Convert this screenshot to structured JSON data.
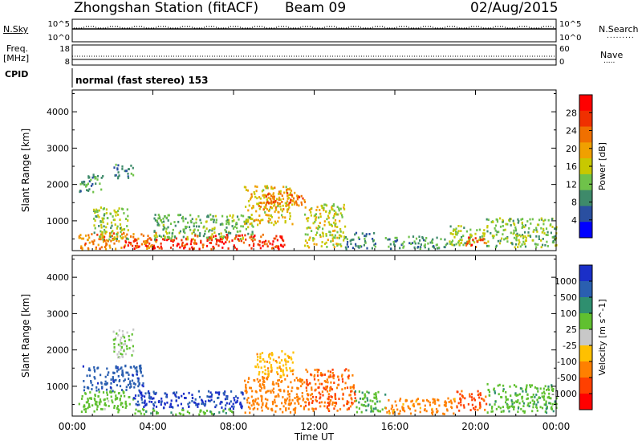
{
  "header": {
    "title": "Zhongshan Station (fitACF)",
    "beam": "Beam 09",
    "date": "02/Aug/2015"
  },
  "status_panels": {
    "nsky_label": "N.Sky",
    "nsearch_label": "N.Search",
    "noise_ticks_left": [
      "10^5",
      "10^0"
    ],
    "noise_ticks_right": [
      "10^5",
      "10^0"
    ],
    "freq_label_1": "Freq.",
    "freq_label_2": "[MHz]",
    "freq_ticks": [
      "18",
      "8"
    ],
    "nave_label": "Nave",
    "nave_ticks": [
      "60",
      "0"
    ],
    "cpid_label": "CPID",
    "cpid_text": "normal (fast stereo) 153"
  },
  "colors": {
    "power": [
      "#0000ff",
      "#2a4fa0",
      "#3e8a6a",
      "#6fc24a",
      "#c8c800",
      "#f0a000",
      "#f07000",
      "#f03000",
      "#ff0000"
    ],
    "velocity": [
      "#ff0000",
      "#ff4000",
      "#ff8000",
      "#ffc000",
      "#c8c8c8",
      "#60c030",
      "#2f8f6f",
      "#2a5fb0",
      "#1a2fc8"
    ]
  },
  "chart_data": [
    {
      "type": "heatmap",
      "title": "",
      "xlabel": "",
      "ylabel": "Slant Range [km]",
      "x_ticks": [
        "00:00",
        "04:00",
        "08:00",
        "12:00",
        "16:00",
        "20:00",
        "00:00"
      ],
      "x_range_hours": [
        0,
        24
      ],
      "y_ticks": [
        "1000",
        "2000",
        "3000",
        "4000"
      ],
      "ylim": [
        180,
        4600
      ],
      "colorbar": {
        "label": "Power [dB]",
        "ticks": [
          "4",
          "8",
          "12",
          "16",
          "20",
          "24",
          "28"
        ],
        "range": [
          0,
          32
        ]
      },
      "patches": [
        {
          "t": [
            0.3,
            4.2
          ],
          "r": [
            250,
            700
          ],
          "value": 22
        },
        {
          "t": [
            1.0,
            2.8
          ],
          "r": [
            500,
            1400
          ],
          "value": 14
        },
        {
          "t": [
            2.0,
            3.0
          ],
          "r": [
            2200,
            2600
          ],
          "value": 8
        },
        {
          "t": [
            2.5,
            6.0
          ],
          "r": [
            250,
            550
          ],
          "value": 28
        },
        {
          "t": [
            4.0,
            9.0
          ],
          "r": [
            500,
            1200
          ],
          "value": 12
        },
        {
          "t": [
            6.0,
            10.5
          ],
          "r": [
            250,
            650
          ],
          "value": 27
        },
        {
          "t": [
            8.5,
            11.0
          ],
          "r": [
            900,
            2000
          ],
          "value": 18
        },
        {
          "t": [
            9.5,
            11.5
          ],
          "r": [
            1400,
            1800
          ],
          "value": 24
        },
        {
          "t": [
            11.5,
            13.5
          ],
          "r": [
            300,
            1500
          ],
          "value": 16
        },
        {
          "t": [
            13.5,
            15.0
          ],
          "r": [
            250,
            700
          ],
          "value": 8
        },
        {
          "t": [
            15.5,
            18.5
          ],
          "r": [
            250,
            600
          ],
          "value": 10
        },
        {
          "t": [
            18.5,
            20.5
          ],
          "r": [
            350,
            900
          ],
          "value": 14
        },
        {
          "t": [
            19.5,
            20.5
          ],
          "r": [
            300,
            600
          ],
          "value": 26
        },
        {
          "t": [
            20.5,
            24.0
          ],
          "r": [
            300,
            1100
          ],
          "value": 13
        },
        {
          "t": [
            0.3,
            1.5
          ],
          "r": [
            1800,
            2300
          ],
          "value": 10
        }
      ]
    },
    {
      "type": "heatmap",
      "title": "",
      "xlabel": "Time UT",
      "ylabel": "Slant Range [km]",
      "x_ticks": [
        "00:00",
        "04:00",
        "08:00",
        "12:00",
        "16:00",
        "20:00",
        "00:00"
      ],
      "x_range_hours": [
        0,
        24
      ],
      "y_ticks": [
        "1000",
        "2000",
        "3000",
        "4000"
      ],
      "ylim": [
        180,
        4600
      ],
      "colorbar": {
        "label": "Velocity [m s^-1]",
        "ticks": [
          "1000",
          "500",
          "100",
          "25",
          "-25",
          "-100",
          "-500",
          "-1000"
        ],
        "range": [
          -1200,
          1200
        ]
      },
      "patches": [
        {
          "t": [
            0.3,
            3.0
          ],
          "r": [
            300,
            900
          ],
          "value": 60
        },
        {
          "t": [
            0.5,
            3.5
          ],
          "r": [
            900,
            1600
          ],
          "value": 800
        },
        {
          "t": [
            2.0,
            3.0
          ],
          "r": [
            1800,
            2600
          ],
          "value": 20
        },
        {
          "t": [
            3.0,
            8.5
          ],
          "r": [
            400,
            900
          ],
          "value": 1100
        },
        {
          "t": [
            3.0,
            8.0
          ],
          "r": [
            250,
            400
          ],
          "value": 90
        },
        {
          "t": [
            8.5,
            11.5
          ],
          "r": [
            300,
            1300
          ],
          "value": -300
        },
        {
          "t": [
            9.0,
            11.0
          ],
          "r": [
            1300,
            2000
          ],
          "value": -80
        },
        {
          "t": [
            11.5,
            14.0
          ],
          "r": [
            300,
            1500
          ],
          "value": -500
        },
        {
          "t": [
            14.0,
            15.5
          ],
          "r": [
            300,
            900
          ],
          "value": 90
        },
        {
          "t": [
            15.5,
            19.0
          ],
          "r": [
            250,
            700
          ],
          "value": -150
        },
        {
          "t": [
            19.0,
            20.5
          ],
          "r": [
            350,
            900
          ],
          "value": -600
        },
        {
          "t": [
            20.5,
            24.0
          ],
          "r": [
            300,
            1100
          ],
          "value": 70
        }
      ]
    }
  ]
}
